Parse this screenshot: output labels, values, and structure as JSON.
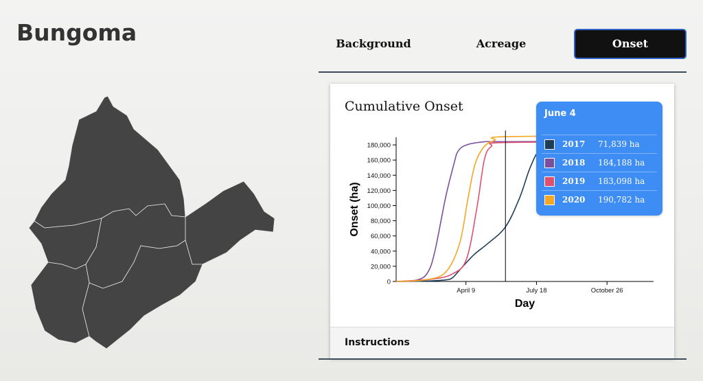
{
  "page": {
    "title": "Bungoma"
  },
  "tabs": [
    {
      "label": "Background",
      "active": false
    },
    {
      "label": "Acreage",
      "active": false
    },
    {
      "label": "Onset",
      "active": true
    }
  ],
  "card": {
    "title": "Cumulative Onset",
    "instructions_label": "Instructions"
  },
  "tooltip": {
    "date": "June 4",
    "rows": [
      {
        "year": "2017",
        "value": "71,839 ha",
        "color": "#1e3d59"
      },
      {
        "year": "2018",
        "value": "184,188 ha",
        "color": "#7b4f9d"
      },
      {
        "year": "2019",
        "value": "183,098 ha",
        "color": "#e0506e"
      },
      {
        "year": "2020",
        "value": "190,782 ha",
        "color": "#f5a623"
      }
    ]
  },
  "colors": {
    "map_fill": "#444444",
    "tab_active_bg": "#111111",
    "tooltip_bg": "#3e8df5",
    "rule": "#3d4a57"
  },
  "chart_data": {
    "type": "line",
    "xlabel": "Day",
    "ylabel": "Onset (ha)",
    "x_day_range": [
      0,
      365
    ],
    "ylim": [
      0,
      190000
    ],
    "y_ticks": [
      0,
      20000,
      40000,
      60000,
      80000,
      100000,
      120000,
      140000,
      160000,
      180000
    ],
    "y_tick_labels": [
      "0",
      "20,000",
      "40,000",
      "60,000",
      "80,000",
      "100,000",
      "120,000",
      "140,000",
      "160,000",
      "180,000"
    ],
    "x_ticks": [
      {
        "day": 99,
        "label": "April 9"
      },
      {
        "day": 199,
        "label": "July 18"
      },
      {
        "day": 299,
        "label": "October 26"
      }
    ],
    "cursor": {
      "day": 155,
      "label": "June 4"
    },
    "series": [
      {
        "name": "2017",
        "color": "#1e3d59",
        "points": [
          [
            0,
            0
          ],
          [
            40,
            500
          ],
          [
            70,
            2000
          ],
          [
            80,
            5000
          ],
          [
            90,
            15000
          ],
          [
            110,
            35000
          ],
          [
            130,
            50000
          ],
          [
            155,
            71839
          ],
          [
            175,
            110000
          ],
          [
            190,
            150000
          ],
          [
            205,
            175000
          ],
          [
            230,
            184000
          ],
          [
            365,
            185000
          ]
        ]
      },
      {
        "name": "2018",
        "color": "#7b4f9d",
        "points": [
          [
            0,
            0
          ],
          [
            30,
            2000
          ],
          [
            45,
            12000
          ],
          [
            55,
            40000
          ],
          [
            70,
            110000
          ],
          [
            82,
            155000
          ],
          [
            88,
            172000
          ],
          [
            100,
            180000
          ],
          [
            125,
            184000
          ],
          [
            155,
            184188
          ],
          [
            365,
            184500
          ]
        ]
      },
      {
        "name": "2019",
        "color": "#e0506e",
        "points": [
          [
            0,
            0
          ],
          [
            50,
            3000
          ],
          [
            80,
            10000
          ],
          [
            100,
            30000
          ],
          [
            115,
            100000
          ],
          [
            125,
            160000
          ],
          [
            135,
            178000
          ],
          [
            155,
            183098
          ],
          [
            365,
            184000
          ]
        ]
      },
      {
        "name": "2020",
        "color": "#f5a623",
        "points": [
          [
            0,
            0
          ],
          [
            40,
            2000
          ],
          [
            70,
            12000
          ],
          [
            90,
            50000
          ],
          [
            102,
            110000
          ],
          [
            112,
            155000
          ],
          [
            125,
            178000
          ],
          [
            140,
            186000
          ],
          [
            155,
            190782
          ],
          [
            365,
            192000
          ]
        ]
      }
    ]
  }
}
